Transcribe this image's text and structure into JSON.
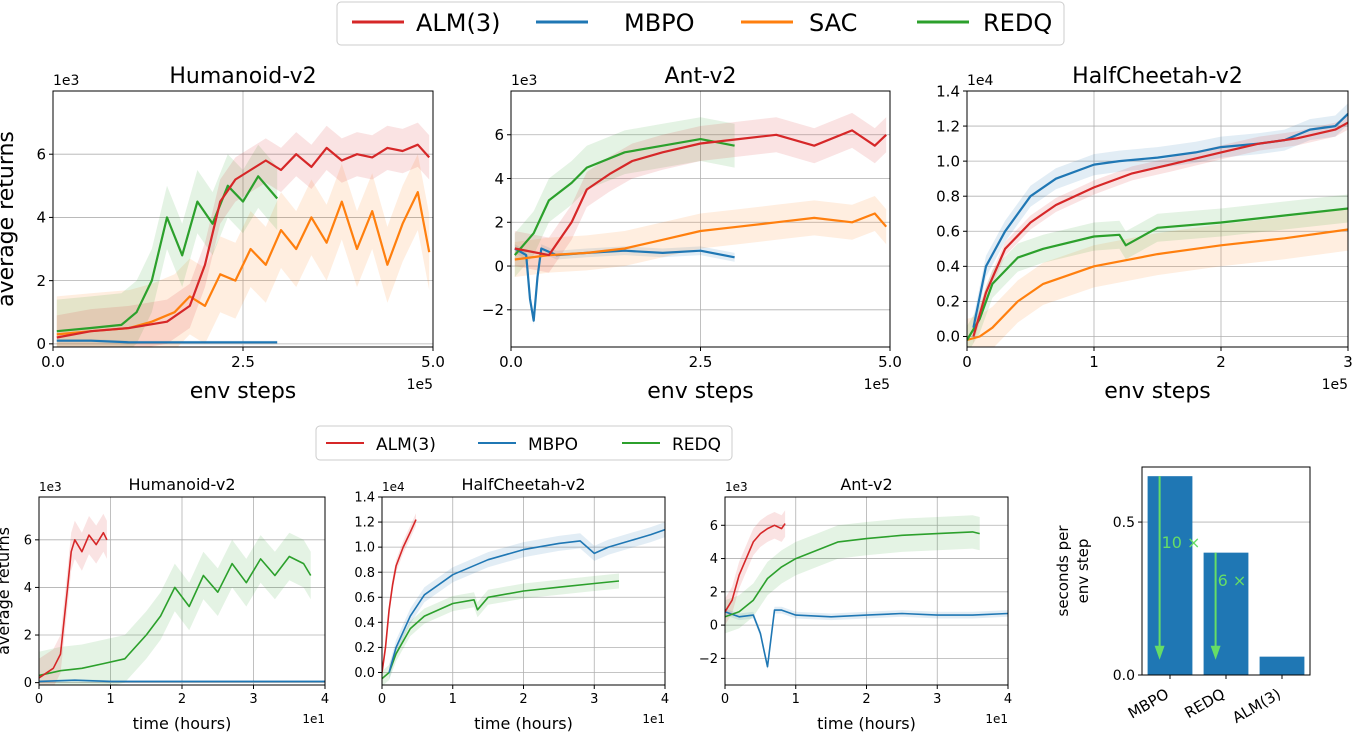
{
  "legend_top": [
    {
      "label": "ALM(3)",
      "color": "#d62728"
    },
    {
      "label": "MBPO",
      "color": "#1f77b4"
    },
    {
      "label": "SAC",
      "color": "#ff7f0e"
    },
    {
      "label": "REDQ",
      "color": "#2ca02c"
    }
  ],
  "legend_bottom": [
    {
      "label": "ALM(3)",
      "color": "#d62728"
    },
    {
      "label": "MBPO",
      "color": "#1f77b4"
    },
    {
      "label": "REDQ",
      "color": "#2ca02c"
    }
  ],
  "chart_data": [
    {
      "id": "top-humanoid",
      "type": "line",
      "title": "Humanoid-v2",
      "xlabel": "env steps",
      "ylabel": "average returns",
      "xlim": [
        0,
        5.0
      ],
      "ylim": [
        -0.1,
        8.0
      ],
      "xticks": [
        {
          "v": 0,
          "l": "0.0"
        },
        {
          "v": 2.5,
          "l": "2.5"
        },
        {
          "v": 5.0,
          "l": "5.0"
        }
      ],
      "yticks": [
        {
          "v": 0,
          "l": "0"
        },
        {
          "v": 2,
          "l": "2"
        },
        {
          "v": 4,
          "l": "4"
        },
        {
          "v": 6,
          "l": "6"
        }
      ],
      "xmult": "1e5",
      "ymult": "1e3",
      "series": [
        {
          "name": "MBPO",
          "color": "#1f77b4",
          "x": [
            0.05,
            0.5,
            1,
            1.5,
            2,
            2.5,
            2.95
          ],
          "y": [
            0.1,
            0.1,
            0.05,
            0.05,
            0.05,
            0.05,
            0.05
          ],
          "band": 0.05
        },
        {
          "name": "SAC",
          "color": "#ff7f0e",
          "x": [
            0.05,
            0.5,
            1,
            1.3,
            1.6,
            1.8,
            2.0,
            2.2,
            2.4,
            2.6,
            2.8,
            3.0,
            3.2,
            3.4,
            3.6,
            3.8,
            4.0,
            4.2,
            4.4,
            4.6,
            4.8,
            4.95
          ],
          "y": [
            0.3,
            0.4,
            0.5,
            0.7,
            1.0,
            1.5,
            1.2,
            2.2,
            2.0,
            3.0,
            2.5,
            3.6,
            3.0,
            4.0,
            3.2,
            4.5,
            3.0,
            4.2,
            2.5,
            3.8,
            4.8,
            2.9
          ],
          "band": 1.2
        },
        {
          "name": "REDQ",
          "color": "#2ca02c",
          "x": [
            0.05,
            0.5,
            0.9,
            1.1,
            1.3,
            1.5,
            1.7,
            1.9,
            2.1,
            2.3,
            2.5,
            2.7,
            2.95
          ],
          "y": [
            0.4,
            0.5,
            0.6,
            1.0,
            2.0,
            4.0,
            2.8,
            4.5,
            3.8,
            5.0,
            4.5,
            5.3,
            4.6
          ],
          "band": 1.0
        },
        {
          "name": "ALM(3)",
          "color": "#d62728",
          "x": [
            0.05,
            0.5,
            1.0,
            1.5,
            1.8,
            2.0,
            2.2,
            2.4,
            2.6,
            2.8,
            3.0,
            3.2,
            3.4,
            3.6,
            3.8,
            4.0,
            4.2,
            4.4,
            4.6,
            4.8,
            4.95
          ],
          "y": [
            0.2,
            0.4,
            0.5,
            0.7,
            1.2,
            2.5,
            4.5,
            5.2,
            5.5,
            5.8,
            5.5,
            6.0,
            5.6,
            6.2,
            5.8,
            6.0,
            5.9,
            6.2,
            6.1,
            6.3,
            5.9
          ],
          "band": 0.7
        }
      ]
    },
    {
      "id": "top-ant",
      "type": "line",
      "title": "Ant-v2",
      "xlabel": "env steps",
      "ylabel": "",
      "xlim": [
        0,
        5.0
      ],
      "ylim": [
        -3.7,
        8.0
      ],
      "xticks": [
        {
          "v": 0,
          "l": "0.0"
        },
        {
          "v": 2.5,
          "l": "2.5"
        },
        {
          "v": 5.0,
          "l": "5.0"
        }
      ],
      "yticks": [
        {
          "v": -2,
          "l": "−2"
        },
        {
          "v": 0,
          "l": "0"
        },
        {
          "v": 2,
          "l": "2"
        },
        {
          "v": 4,
          "l": "4"
        },
        {
          "v": 6,
          "l": "6"
        }
      ],
      "xmult": "1e5",
      "ymult": "1e3",
      "series": [
        {
          "name": "MBPO",
          "color": "#1f77b4",
          "x": [
            0.05,
            0.2,
            0.25,
            0.3,
            0.35,
            0.4,
            0.6,
            1,
            1.5,
            2,
            2.5,
            2.95
          ],
          "y": [
            0.8,
            0.5,
            -1.5,
            -2.5,
            -0.5,
            0.8,
            0.5,
            0.6,
            0.7,
            0.6,
            0.7,
            0.4
          ],
          "band": 0.2
        },
        {
          "name": "SAC",
          "color": "#ff7f0e",
          "x": [
            0.05,
            0.5,
            1.0,
            1.5,
            2.0,
            2.5,
            3.0,
            3.5,
            4.0,
            4.5,
            4.8,
            4.95
          ],
          "y": [
            0.3,
            0.5,
            0.6,
            0.8,
            1.2,
            1.6,
            1.8,
            2.0,
            2.2,
            2.0,
            2.4,
            1.8
          ],
          "band": 0.8
        },
        {
          "name": "REDQ",
          "color": "#2ca02c",
          "x": [
            0.05,
            0.3,
            0.5,
            0.8,
            1.0,
            1.5,
            2.0,
            2.5,
            2.95
          ],
          "y": [
            0.5,
            1.5,
            3.0,
            3.8,
            4.5,
            5.2,
            5.5,
            5.8,
            5.5
          ],
          "band": 1.0
        },
        {
          "name": "ALM(3)",
          "color": "#d62728",
          "x": [
            0.05,
            0.5,
            0.8,
            1.0,
            1.3,
            1.6,
            2.0,
            2.5,
            3.0,
            3.5,
            4.0,
            4.5,
            4.8,
            4.95
          ],
          "y": [
            0.8,
            0.5,
            2.0,
            3.5,
            4.2,
            4.8,
            5.2,
            5.6,
            5.8,
            6.0,
            5.5,
            6.2,
            5.5,
            6.0
          ],
          "band": 0.8
        }
      ]
    },
    {
      "id": "top-halfcheetah",
      "type": "line",
      "title": "HalfCheetah-v2",
      "xlabel": "env steps",
      "ylabel": "",
      "xlim": [
        0,
        3.0
      ],
      "ylim": [
        -0.06,
        1.4
      ],
      "xticks": [
        {
          "v": 0,
          "l": "0"
        },
        {
          "v": 1,
          "l": "1"
        },
        {
          "v": 2,
          "l": "2"
        },
        {
          "v": 3,
          "l": "3"
        }
      ],
      "yticks": [
        {
          "v": 0,
          "l": "0.0"
        },
        {
          "v": 0.2,
          "l": "0.2"
        },
        {
          "v": 0.4,
          "l": "0.4"
        },
        {
          "v": 0.6,
          "l": "0.6"
        },
        {
          "v": 0.8,
          "l": "0.8"
        },
        {
          "v": 1.0,
          "l": "1.0"
        },
        {
          "v": 1.2,
          "l": "1.2"
        },
        {
          "v": 1.4,
          "l": "1.4"
        }
      ],
      "xmult": "1e5",
      "ymult": "1e4",
      "series": [
        {
          "name": "SAC",
          "color": "#ff7f0e",
          "x": [
            0,
            0.1,
            0.2,
            0.4,
            0.6,
            1.0,
            1.5,
            2.0,
            2.5,
            3.0
          ],
          "y": [
            -0.02,
            0.0,
            0.05,
            0.2,
            0.3,
            0.4,
            0.47,
            0.52,
            0.56,
            0.61
          ],
          "band": 0.12
        },
        {
          "name": "REDQ",
          "color": "#2ca02c",
          "x": [
            0,
            0.1,
            0.2,
            0.4,
            0.6,
            1.0,
            1.2,
            1.25,
            1.5,
            2.0,
            2.5,
            3.0
          ],
          "y": [
            -0.02,
            0.1,
            0.3,
            0.45,
            0.5,
            0.57,
            0.58,
            0.52,
            0.62,
            0.65,
            0.69,
            0.73
          ],
          "band": 0.08
        },
        {
          "name": "MBPO",
          "color": "#1f77b4",
          "x": [
            0.05,
            0.15,
            0.3,
            0.5,
            0.7,
            1.0,
            1.2,
            1.5,
            1.8,
            2.0,
            2.3,
            2.5,
            2.7,
            2.9,
            3.0
          ],
          "y": [
            0.05,
            0.4,
            0.6,
            0.8,
            0.9,
            0.98,
            1.0,
            1.02,
            1.05,
            1.08,
            1.1,
            1.12,
            1.18,
            1.2,
            1.27
          ],
          "band": 0.06
        },
        {
          "name": "ALM(3)",
          "color": "#d62728",
          "x": [
            0.05,
            0.15,
            0.3,
            0.5,
            0.7,
            1.0,
            1.3,
            1.6,
            2.0,
            2.3,
            2.6,
            2.9,
            3.0
          ],
          "y": [
            0.0,
            0.25,
            0.5,
            0.65,
            0.75,
            0.85,
            0.93,
            0.98,
            1.05,
            1.1,
            1.13,
            1.18,
            1.22
          ],
          "band": 0.04
        }
      ]
    },
    {
      "id": "bot-humanoid",
      "type": "line",
      "title": "Humanoid-v2",
      "xlabel": "time (hours)",
      "ylabel": "average returns",
      "xlim": [
        0,
        4.0
      ],
      "ylim": [
        -0.1,
        7.8
      ],
      "xticks": [
        {
          "v": 0,
          "l": "0"
        },
        {
          "v": 1,
          "l": "1"
        },
        {
          "v": 2,
          "l": "2"
        },
        {
          "v": 3,
          "l": "3"
        },
        {
          "v": 4,
          "l": "4"
        }
      ],
      "yticks": [
        {
          "v": 0,
          "l": "0"
        },
        {
          "v": 2,
          "l": "2"
        },
        {
          "v": 4,
          "l": "4"
        },
        {
          "v": 6,
          "l": "6"
        }
      ],
      "xmult": "1e1",
      "ymult": "1e3",
      "series": [
        {
          "name": "MBPO",
          "color": "#1f77b4",
          "x": [
            0,
            0.5,
            1,
            1.5,
            2,
            2.5,
            3,
            3.5,
            4.0
          ],
          "y": [
            0.05,
            0.1,
            0.05,
            0.05,
            0.05,
            0.05,
            0.05,
            0.05,
            0.05
          ],
          "band": 0.05
        },
        {
          "name": "REDQ",
          "color": "#2ca02c",
          "x": [
            0,
            0.3,
            0.6,
            0.9,
            1.2,
            1.5,
            1.7,
            1.9,
            2.1,
            2.3,
            2.5,
            2.7,
            2.9,
            3.1,
            3.3,
            3.5,
            3.7,
            3.8
          ],
          "y": [
            0.3,
            0.5,
            0.6,
            0.8,
            1.0,
            2.0,
            2.8,
            4.0,
            3.2,
            4.5,
            3.8,
            5.0,
            4.2,
            5.2,
            4.5,
            5.3,
            5.0,
            4.5
          ],
          "band": 1.0
        },
        {
          "name": "ALM(3)",
          "color": "#d62728",
          "x": [
            0,
            0.2,
            0.3,
            0.4,
            0.45,
            0.5,
            0.6,
            0.7,
            0.8,
            0.9,
            0.95
          ],
          "y": [
            0.2,
            0.6,
            1.2,
            4.0,
            5.5,
            6.0,
            5.5,
            6.2,
            5.8,
            6.3,
            6.0
          ],
          "band": 0.8
        }
      ]
    },
    {
      "id": "bot-halfcheetah",
      "type": "line",
      "title": "HalfCheetah-v2",
      "xlabel": "time (hours)",
      "ylabel": "",
      "xlim": [
        0,
        4.0
      ],
      "ylim": [
        -0.1,
        1.4
      ],
      "xticks": [
        {
          "v": 0,
          "l": "0"
        },
        {
          "v": 1,
          "l": "1"
        },
        {
          "v": 2,
          "l": "2"
        },
        {
          "v": 3,
          "l": "3"
        },
        {
          "v": 4,
          "l": "4"
        }
      ],
      "yticks": [
        {
          "v": 0,
          "l": "0.0"
        },
        {
          "v": 0.2,
          "l": "0.2"
        },
        {
          "v": 0.4,
          "l": "0.4"
        },
        {
          "v": 0.6,
          "l": "0.6"
        },
        {
          "v": 0.8,
          "l": "0.8"
        },
        {
          "v": 1.0,
          "l": "1.0"
        },
        {
          "v": 1.2,
          "l": "1.2"
        },
        {
          "v": 1.4,
          "l": "1.4"
        }
      ],
      "xmult": "1e1",
      "ymult": "1e4",
      "series": [
        {
          "name": "REDQ",
          "color": "#2ca02c",
          "x": [
            0,
            0.1,
            0.2,
            0.4,
            0.6,
            1.0,
            1.3,
            1.35,
            1.5,
            2.0,
            2.5,
            3.0,
            3.35
          ],
          "y": [
            -0.05,
            0.0,
            0.15,
            0.35,
            0.45,
            0.55,
            0.58,
            0.5,
            0.6,
            0.65,
            0.68,
            0.71,
            0.73
          ],
          "band": 0.06
        },
        {
          "name": "MBPO",
          "color": "#1f77b4",
          "x": [
            0.1,
            0.2,
            0.4,
            0.6,
            1.0,
            1.5,
            2.0,
            2.5,
            2.8,
            3.0,
            3.2,
            3.5,
            3.8,
            4.0
          ],
          "y": [
            0.0,
            0.2,
            0.45,
            0.62,
            0.78,
            0.9,
            0.98,
            1.03,
            1.05,
            0.95,
            1.0,
            1.05,
            1.1,
            1.14
          ],
          "band": 0.06
        },
        {
          "name": "ALM(3)",
          "color": "#d62728",
          "x": [
            0,
            0.05,
            0.1,
            0.15,
            0.2,
            0.3,
            0.4,
            0.48
          ],
          "y": [
            0.0,
            0.2,
            0.5,
            0.7,
            0.85,
            1.0,
            1.12,
            1.22
          ],
          "band": 0.05
        }
      ]
    },
    {
      "id": "bot-ant",
      "type": "line",
      "title": "Ant-v2",
      "xlabel": "time (hours)",
      "ylabel": "",
      "xlim": [
        0,
        4.0
      ],
      "ylim": [
        -3.6,
        7.7
      ],
      "xticks": [
        {
          "v": 0,
          "l": "0"
        },
        {
          "v": 1,
          "l": "1"
        },
        {
          "v": 2,
          "l": "2"
        },
        {
          "v": 3,
          "l": "3"
        },
        {
          "v": 4,
          "l": "4"
        }
      ],
      "yticks": [
        {
          "v": -2,
          "l": "−2"
        },
        {
          "v": 0,
          "l": "0"
        },
        {
          "v": 2,
          "l": "2"
        },
        {
          "v": 4,
          "l": "4"
        },
        {
          "v": 6,
          "l": "6"
        }
      ],
      "xmult": "1e1",
      "ymult": "1e3",
      "series": [
        {
          "name": "MBPO",
          "color": "#1f77b4",
          "x": [
            0,
            0.2,
            0.4,
            0.5,
            0.55,
            0.6,
            0.65,
            0.7,
            0.8,
            1.0,
            1.5,
            2.0,
            2.5,
            3.0,
            3.5,
            4.0
          ],
          "y": [
            0.8,
            0.5,
            0.6,
            -0.5,
            -1.5,
            -2.5,
            -0.8,
            0.9,
            0.9,
            0.6,
            0.5,
            0.6,
            0.7,
            0.6,
            0.6,
            0.7
          ],
          "band": 0.2
        },
        {
          "name": "REDQ",
          "color": "#2ca02c",
          "x": [
            0,
            0.2,
            0.4,
            0.6,
            0.8,
            1.0,
            1.3,
            1.6,
            2.0,
            2.5,
            3.0,
            3.5,
            3.6
          ],
          "y": [
            0.5,
            0.8,
            1.5,
            2.8,
            3.5,
            4.0,
            4.5,
            5.0,
            5.2,
            5.4,
            5.5,
            5.6,
            5.5
          ],
          "band": 1.0
        },
        {
          "name": "ALM(3)",
          "color": "#d62728",
          "x": [
            0,
            0.1,
            0.2,
            0.3,
            0.4,
            0.5,
            0.6,
            0.7,
            0.8,
            0.85
          ],
          "y": [
            0.8,
            1.5,
            3.0,
            4.0,
            5.0,
            5.5,
            5.8,
            6.0,
            5.8,
            6.1
          ],
          "band": 0.8
        }
      ]
    },
    {
      "id": "bot-bar",
      "type": "bar",
      "title": "",
      "xlabel": "",
      "ylabel": "seconds per env step",
      "ylabel_lines": [
        "seconds per",
        "env step"
      ],
      "categories": [
        "MBPO",
        "REDQ",
        "ALM(3)"
      ],
      "values": [
        0.65,
        0.4,
        0.06
      ],
      "color": "#1f77b4",
      "ylim": [
        0,
        0.68
      ],
      "yticks": [
        {
          "v": 0,
          "l": "0.0"
        },
        {
          "v": 0.5,
          "l": "0.5"
        }
      ],
      "annotations": [
        {
          "text": "10 ×",
          "bar": 0,
          "from": 0.65,
          "to": 0.05,
          "color": "#66dd66"
        },
        {
          "text": "6 ×",
          "bar": 1,
          "from": 0.4,
          "to": 0.05,
          "color": "#66dd66"
        }
      ]
    }
  ]
}
